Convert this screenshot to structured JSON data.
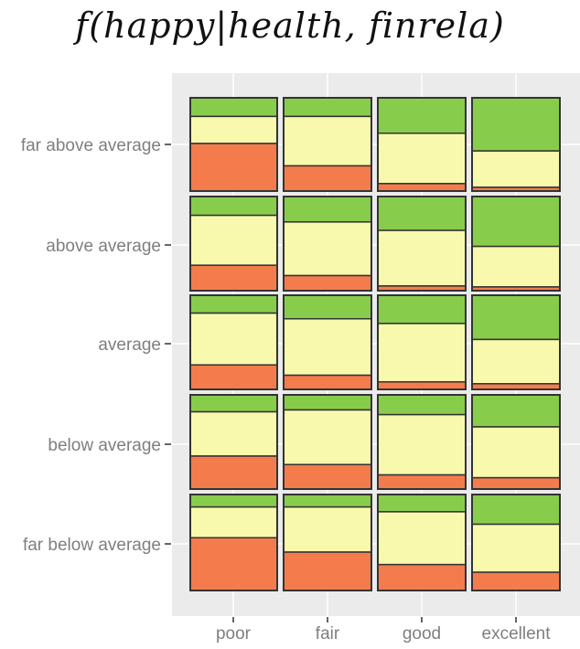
{
  "chart_data": {
    "type": "bar",
    "title": "f(happy|health, finrela)",
    "x_categories": [
      "poor",
      "fair",
      "good",
      "excellent"
    ],
    "y_categories": [
      "far above average",
      "above average",
      "average",
      "below average",
      "far below average"
    ],
    "segment_order_top_to_bottom": [
      "green",
      "yellow",
      "orange"
    ],
    "colors": {
      "green": "#88cc4c",
      "yellow": "#f9f9ae",
      "orange": "#f47c4c",
      "panel": "#ebebeb",
      "grid": "#ffffff",
      "border": "#333333"
    },
    "cells": [
      {
        "row": "far above average",
        "col": "poor",
        "green": 0.2,
        "yellow": 0.29,
        "orange": 0.51
      },
      {
        "row": "far above average",
        "col": "fair",
        "green": 0.2,
        "yellow": 0.53,
        "orange": 0.27
      },
      {
        "row": "far above average",
        "col": "good",
        "green": 0.38,
        "yellow": 0.54,
        "orange": 0.08
      },
      {
        "row": "far above average",
        "col": "excellent",
        "green": 0.57,
        "yellow": 0.39,
        "orange": 0.04
      },
      {
        "row": "above average",
        "col": "poor",
        "green": 0.2,
        "yellow": 0.53,
        "orange": 0.27
      },
      {
        "row": "above average",
        "col": "fair",
        "green": 0.27,
        "yellow": 0.57,
        "orange": 0.16
      },
      {
        "row": "above average",
        "col": "good",
        "green": 0.36,
        "yellow": 0.59,
        "orange": 0.05
      },
      {
        "row": "above average",
        "col": "excellent",
        "green": 0.53,
        "yellow": 0.43,
        "orange": 0.04
      },
      {
        "row": "average",
        "col": "poor",
        "green": 0.19,
        "yellow": 0.55,
        "orange": 0.26
      },
      {
        "row": "average",
        "col": "fair",
        "green": 0.25,
        "yellow": 0.6,
        "orange": 0.15
      },
      {
        "row": "average",
        "col": "good",
        "green": 0.3,
        "yellow": 0.62,
        "orange": 0.08
      },
      {
        "row": "average",
        "col": "excellent",
        "green": 0.47,
        "yellow": 0.47,
        "orange": 0.06
      },
      {
        "row": "below average",
        "col": "poor",
        "green": 0.18,
        "yellow": 0.47,
        "orange": 0.35
      },
      {
        "row": "below average",
        "col": "fair",
        "green": 0.16,
        "yellow": 0.58,
        "orange": 0.26
      },
      {
        "row": "below average",
        "col": "good",
        "green": 0.21,
        "yellow": 0.64,
        "orange": 0.15
      },
      {
        "row": "below average",
        "col": "excellent",
        "green": 0.34,
        "yellow": 0.54,
        "orange": 0.12
      },
      {
        "row": "far below average",
        "col": "poor",
        "green": 0.13,
        "yellow": 0.32,
        "orange": 0.55
      },
      {
        "row": "far below average",
        "col": "fair",
        "green": 0.13,
        "yellow": 0.47,
        "orange": 0.4
      },
      {
        "row": "far below average",
        "col": "good",
        "green": 0.18,
        "yellow": 0.55,
        "orange": 0.27
      },
      {
        "row": "far below average",
        "col": "excellent",
        "green": 0.31,
        "yellow": 0.5,
        "orange": 0.19
      }
    ]
  }
}
